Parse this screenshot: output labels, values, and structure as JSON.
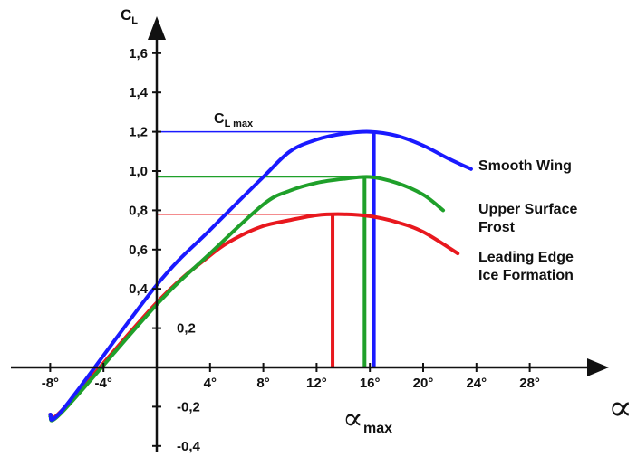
{
  "chart_data": {
    "type": "line",
    "title": "",
    "ylabel": {
      "main": "C",
      "sub": "L"
    },
    "xlabel": "∝",
    "annotations": {
      "clmax": {
        "main": "C",
        "sub": "L max"
      },
      "alphamax": {
        "main": "∝",
        "sub": "max"
      }
    },
    "xlim": [
      -9,
      33
    ],
    "ylim": [
      -0.5,
      1.85
    ],
    "x_ticks": [
      -8,
      -4,
      4,
      8,
      12,
      16,
      20,
      24,
      28
    ],
    "x_tick_labels": [
      "-8°",
      "-4°",
      "4°",
      "8°",
      "12°",
      "16°",
      "20°",
      "24°",
      "28°"
    ],
    "y_ticks": [
      1.6,
      1.4,
      1.2,
      1.0,
      0.8,
      0.6,
      0.4,
      0.2,
      -0.2,
      -0.4
    ],
    "y_tick_labels": [
      "1,6",
      "1,4",
      "1,2",
      "1,0",
      "0,8",
      "0,6",
      "0,4",
      "0,2",
      "-0,2",
      "-0,4"
    ],
    "grid": false,
    "series": [
      {
        "name": "Smooth Wing",
        "color": "#1a1aff",
        "cl_max": 1.2,
        "alpha_max": 16.3,
        "x": [
          -8,
          -7,
          0,
          4,
          8,
          10,
          12,
          14,
          16,
          18,
          20,
          22,
          23.6
        ],
        "y": [
          -0.24,
          -0.21,
          0.42,
          0.7,
          0.97,
          1.1,
          1.16,
          1.19,
          1.2,
          1.18,
          1.13,
          1.06,
          1.01
        ]
      },
      {
        "name": "Upper Surface Frost",
        "color": "#1fa02a",
        "cl_max": 0.97,
        "alpha_max": 15.6,
        "x": [
          -8,
          -7,
          0,
          4,
          8,
          10,
          12,
          14,
          16,
          18,
          20,
          21.5
        ],
        "y": [
          -0.25,
          -0.22,
          0.32,
          0.58,
          0.83,
          0.9,
          0.94,
          0.96,
          0.97,
          0.94,
          0.88,
          0.8
        ]
      },
      {
        "name": "Leading Edge Ice Formation",
        "color": "#e8181e",
        "cl_max": 0.78,
        "alpha_max": 13.2,
        "x": [
          -8,
          -7,
          0,
          4,
          6,
          8,
          10,
          12,
          14,
          16,
          18,
          20,
          22.6
        ],
        "y": [
          -0.24,
          -0.21,
          0.33,
          0.57,
          0.66,
          0.72,
          0.75,
          0.775,
          0.78,
          0.77,
          0.74,
          0.69,
          0.58
        ]
      }
    ],
    "legend_labels": [
      {
        "lines": [
          "Smooth Wing"
        ]
      },
      {
        "lines": [
          "Upper Surface",
          "Frost"
        ]
      },
      {
        "lines": [
          "Leading Edge",
          "Ice Formation"
        ]
      }
    ]
  }
}
